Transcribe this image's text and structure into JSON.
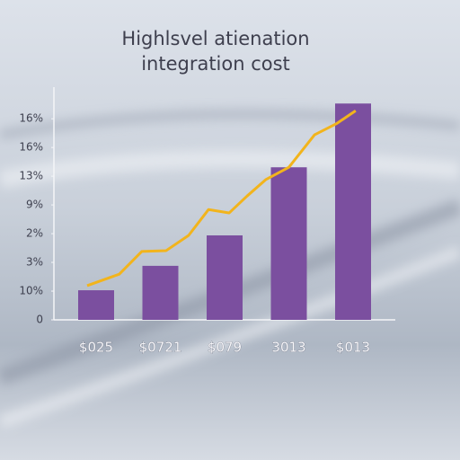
{
  "chart_data": {
    "type": "bar",
    "title_lines": [
      "Highlsvel atienation",
      "integration cost"
    ],
    "categories": [
      "$025",
      "$0721",
      "$079",
      "3013",
      "$013"
    ],
    "values": [
      1.03,
      1.88,
      2.94,
      5.31,
      7.53
    ],
    "color": "#7b4f9f",
    "line": {
      "color": "#f2b41c",
      "x": [
        -0.14,
        0.36,
        0.71,
        1.09,
        1.44,
        1.75,
        2.07,
        2.35,
        2.64,
        3.0,
        3.4,
        3.75,
        4.04
      ],
      "values": [
        1.19,
        1.59,
        2.38,
        2.41,
        2.94,
        3.84,
        3.72,
        4.31,
        4.88,
        5.31,
        6.44,
        6.84,
        7.28
      ]
    },
    "ylim": [
      0,
      8.1
    ],
    "yticks": [
      {
        "value": 0,
        "label": "0"
      },
      {
        "value": 1,
        "label": "10%"
      },
      {
        "value": 2,
        "label": "3%"
      },
      {
        "value": 3,
        "label": "2%"
      },
      {
        "value": 4,
        "label": "9%"
      },
      {
        "value": 5,
        "label": "13%"
      },
      {
        "value": 6,
        "label": "16%"
      },
      {
        "value": 7,
        "label": "16%"
      }
    ]
  }
}
